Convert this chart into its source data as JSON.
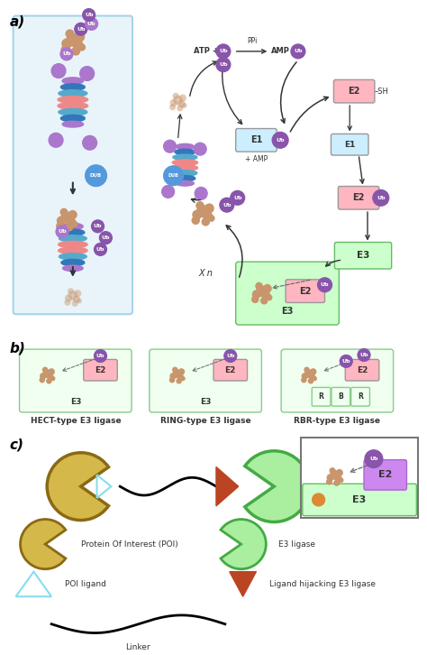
{
  "bg_color": "#ffffff",
  "section_labels": [
    "a)",
    "b)",
    "c)"
  ],
  "ub_purple": "#8855AA",
  "ub_light_purple": "#AA77CC",
  "prot_pink": "#EE8888",
  "prot_blue": "#55AACC",
  "prot_dblue": "#3377BB",
  "prot_lav": "#AA77CC",
  "e1_col": "#CCEEFF",
  "e2_col": "#FFB6C1",
  "e3_col": "#CCFFCC",
  "e2_purple_col": "#CC88EE",
  "prot_color": "#C8956C",
  "poi_col": "#D4B84A",
  "poi_out": "#8B6914",
  "e3g": "#AAEEA0",
  "e3go": "#44AA44",
  "dub_col": "#5599DD",
  "lhj_col": "#BB4422",
  "cyan_tri": "#88DDEE",
  "orange_dot": "#DD8833"
}
